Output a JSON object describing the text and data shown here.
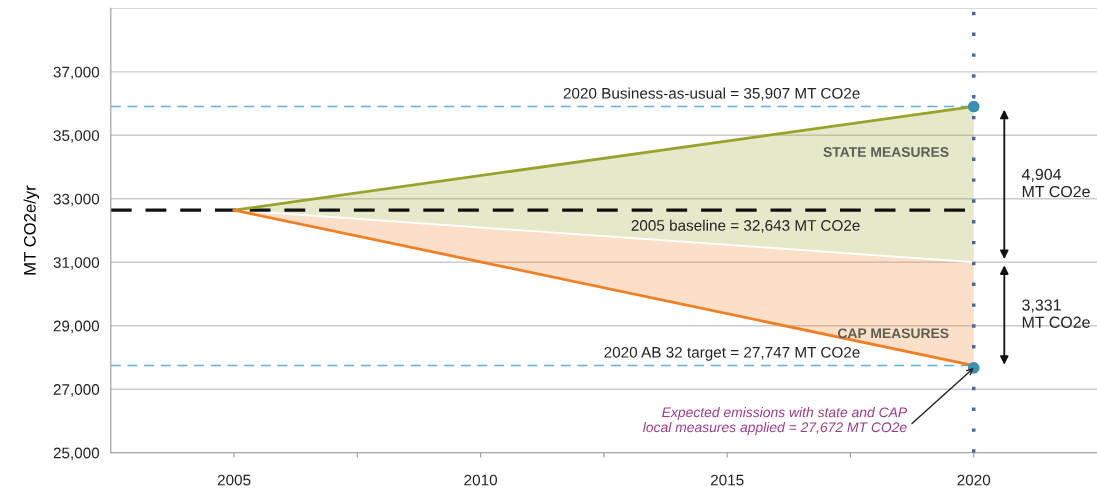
{
  "chart_data": {
    "type": "line",
    "ylabel": "MT CO2e/yr",
    "x": [
      2005,
      2020
    ],
    "series": [
      {
        "name": "STATE MEASURES",
        "color": "#9aa22a",
        "values": [
          32643,
          35907
        ],
        "lower": [
          32643,
          31003
        ],
        "upper": [
          32643,
          35907
        ]
      },
      {
        "name": "CAP MEASURES",
        "color": "#f07f24",
        "values": [
          32643,
          27747
        ],
        "lower": [
          32643,
          27747
        ],
        "upper": [
          32643,
          31003
        ]
      },
      {
        "color": "#ffffff",
        "values": [
          32643,
          31003
        ]
      },
      {
        "type": "scatter",
        "color": "#3a8fb5",
        "x": [
          2020,
          2020
        ],
        "values": [
          35907,
          27672
        ]
      }
    ],
    "ref_lines": [
      {
        "axis": "y",
        "value": 32643,
        "label": "2005 baseline = 32,643 MT CO2e",
        "color": "#111111",
        "line_style": "dashed"
      },
      {
        "axis": "y",
        "value": 35907,
        "label": "2020 Business-as-usual = 35,907 MT CO2e",
        "color": "#5ab4d6",
        "line_style": "dashed"
      },
      {
        "axis": "y",
        "value": 27747,
        "label": "2020 AB 32 target = 27,747 MT CO2e",
        "color": "#5ab4d6",
        "line_style": "dashed"
      },
      {
        "axis": "x",
        "value": 2020,
        "label": null,
        "color": "#3d6aa8",
        "line_style": "dotted"
      }
    ],
    "annotations": [
      "4,904\nMT CO2e",
      "3,331\nMT CO2e",
      {
        "text": "Expected emissions with state and CAP\nlocal measures applied = 27,672 MT CO2e",
        "x": 2020,
        "y": 27672
      }
    ],
    "xlim": [
      2002.5,
      2022.5
    ],
    "xticks": [
      2005,
      2010,
      2015,
      2020,
      {
        "value": 2007.5,
        "label": null
      },
      {
        "value": 2012.5,
        "label": null
      },
      {
        "value": 2017.5,
        "label": null
      }
    ],
    "ylim": [
      25000,
      39000
    ],
    "yticks": [
      {
        "value": 25000,
        "label": "25,000"
      },
      {
        "value": 27000,
        "label": "27,000"
      },
      {
        "value": 29000,
        "label": "29,000"
      },
      {
        "value": 31000,
        "label": "31,000"
      },
      {
        "value": 33000,
        "label": "33,000"
      },
      {
        "value": 35000,
        "label": "35,000"
      },
      {
        "value": 37000,
        "label": "37,000"
      },
      {
        "value": 39000,
        "label": null
      }
    ],
    "grid": "y",
    "legend": false
  }
}
